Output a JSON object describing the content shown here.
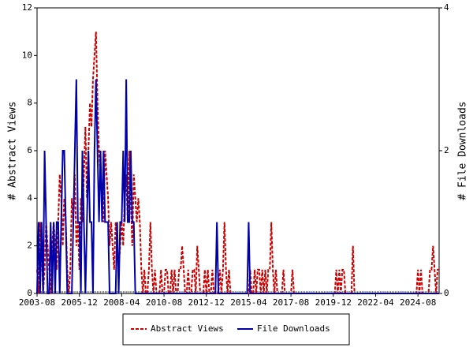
{
  "chart_data": {
    "type": "line",
    "y_label": "# Abstract Views",
    "y2_label": "# File Downloads",
    "ylim": [
      0,
      12
    ],
    "yticks": [
      0,
      2,
      4,
      6,
      8,
      10,
      12
    ],
    "y2lim": [
      0,
      4
    ],
    "y2ticks": [
      0,
      2,
      4
    ],
    "legend": "bottom",
    "categories": [
      "2003-08",
      null,
      null,
      null,
      null,
      null,
      null,
      null,
      null,
      null,
      null,
      null,
      null,
      null,
      null,
      null,
      null,
      null,
      null,
      null,
      null,
      null,
      null,
      null,
      null,
      null,
      null,
      null,
      "2005-12",
      null,
      null,
      null,
      null,
      null,
      null,
      null,
      null,
      null,
      null,
      null,
      null,
      null,
      null,
      null,
      null,
      null,
      null,
      null,
      null,
      null,
      null,
      null,
      null,
      null,
      null,
      null,
      "2008-04",
      null,
      null,
      null,
      null,
      null,
      null,
      null,
      null,
      null,
      null,
      null,
      null,
      null,
      null,
      null,
      null,
      null,
      null,
      null,
      null,
      null,
      null,
      null,
      null,
      null,
      null,
      null,
      "2010-08",
      null,
      null,
      null,
      null,
      null,
      null,
      null,
      null,
      null,
      null,
      null,
      null,
      null,
      null,
      null,
      null,
      null,
      null,
      null,
      null,
      null,
      null,
      null,
      null,
      null,
      null,
      null,
      "2012-12",
      null,
      null,
      null,
      null,
      null,
      null,
      null,
      null,
      null,
      null,
      null,
      null,
      null,
      null,
      null,
      null,
      null,
      null,
      null,
      null,
      null,
      null,
      null,
      null,
      null,
      null,
      null,
      "2015-04",
      null,
      null,
      null,
      null,
      null,
      null,
      null,
      null,
      null,
      null,
      null,
      null,
      null,
      null,
      null,
      null,
      null,
      null,
      null,
      null,
      null,
      null,
      null,
      null,
      null,
      null,
      null,
      "2017-08",
      null,
      null,
      null,
      null,
      null,
      null,
      null,
      null,
      null,
      null,
      null,
      null,
      null,
      null,
      null,
      null,
      null,
      null,
      null,
      null,
      null,
      null,
      null,
      null,
      null,
      null,
      null,
      "2019-12",
      null,
      null,
      null,
      null,
      null,
      null,
      null,
      null,
      null,
      null,
      null,
      null,
      null,
      null,
      null,
      null,
      null,
      null,
      null,
      null,
      null,
      null,
      null,
      null,
      null,
      null,
      null,
      "2022-04",
      null,
      null,
      null,
      null,
      null,
      null,
      null,
      null,
      null,
      null,
      null,
      null,
      null,
      null,
      null,
      null,
      null,
      null,
      null,
      null,
      null,
      null,
      null,
      null,
      null,
      null,
      null,
      "2024-08",
      null,
      null,
      null,
      null,
      null,
      null,
      null,
      null,
      null,
      null,
      null,
      null,
      null,
      null
    ],
    "series": [
      {
        "name": "Abstract Views",
        "color": "#cc0000",
        "dash": true,
        "values": [
          1,
          0,
          3,
          2,
          0,
          1,
          3,
          2,
          1,
          0,
          2,
          3,
          2,
          1,
          3,
          5,
          4,
          2,
          4,
          3,
          1,
          0,
          1,
          4,
          3,
          5,
          2,
          3,
          1,
          4,
          3,
          5,
          7,
          4,
          6,
          8,
          7,
          9,
          10,
          11,
          8,
          6,
          5,
          4,
          3,
          6,
          5,
          4,
          2,
          3,
          2,
          1,
          3,
          2,
          1,
          2,
          3,
          2,
          4,
          5,
          3,
          6,
          4,
          2,
          5,
          4,
          3,
          4,
          3,
          1,
          0,
          1,
          0,
          0,
          1,
          3,
          1,
          0,
          1,
          0,
          0,
          0,
          1,
          0,
          0,
          1,
          1,
          0,
          0,
          1,
          0,
          1,
          0,
          0,
          1,
          1,
          2,
          1,
          0,
          0,
          1,
          0,
          0,
          1,
          1,
          0,
          2,
          1,
          0,
          0,
          0,
          1,
          0,
          1,
          0,
          0,
          1,
          0,
          0,
          0,
          0,
          1,
          0,
          1,
          3,
          1,
          0,
          1,
          0,
          0,
          0,
          0,
          0,
          0,
          0,
          0,
          0,
          0,
          0,
          0,
          0,
          1,
          0,
          0,
          1,
          0,
          1,
          1,
          0,
          1,
          0,
          1,
          0,
          1,
          1,
          3,
          1,
          0,
          1,
          0,
          0,
          0,
          0,
          1,
          0,
          0,
          0,
          0,
          0,
          1,
          0,
          0,
          0,
          0,
          0,
          0,
          0,
          0,
          0,
          0,
          0,
          0,
          0,
          0,
          0,
          0,
          0,
          0,
          0,
          0,
          0,
          0,
          0,
          0,
          0,
          0,
          0,
          0,
          1,
          0,
          1,
          0,
          1,
          1,
          0,
          0,
          0,
          0,
          0,
          2,
          0,
          0,
          0,
          0,
          0,
          0,
          0,
          0,
          0,
          0,
          0,
          0,
          0,
          0,
          0,
          0,
          0,
          0,
          0,
          0,
          0,
          0,
          0,
          0,
          0,
          0,
          0,
          0,
          0,
          0,
          0,
          0,
          0,
          0,
          0,
          0,
          0,
          0,
          0,
          0,
          0,
          0,
          1,
          0,
          1,
          0,
          0,
          0,
          0,
          0,
          1,
          1,
          2,
          1,
          0,
          1,
          1
        ]
      },
      {
        "name": "File Downloads",
        "color": "#0000aa",
        "axis": "y2",
        "dash": false,
        "values": [
          0,
          1,
          0,
          1,
          0,
          2,
          1,
          0,
          0,
          1,
          0,
          1,
          0,
          1,
          1,
          0,
          1,
          2,
          2,
          1,
          0,
          0,
          0,
          0,
          1,
          2,
          3,
          1,
          1,
          0,
          2,
          1,
          0,
          1,
          2,
          1,
          1,
          0,
          2,
          3,
          2,
          1,
          2,
          1,
          2,
          1,
          1,
          1,
          0,
          0,
          0,
          0,
          0,
          1,
          0,
          1,
          1,
          2,
          1,
          3,
          1,
          1,
          2,
          1,
          1,
          0,
          0,
          0,
          0,
          0,
          0,
          0,
          0,
          0,
          0,
          0,
          0,
          0,
          0,
          0,
          0,
          0,
          0,
          0,
          0,
          0,
          0,
          0,
          0,
          0,
          0,
          0,
          0,
          0,
          0,
          0,
          0,
          0,
          0,
          0,
          0,
          0,
          0,
          0,
          0,
          0,
          0,
          0,
          0,
          0,
          0,
          0,
          0,
          0,
          0,
          0,
          0,
          0,
          0,
          1,
          0,
          0,
          0,
          0,
          0,
          0,
          0,
          0,
          0,
          0,
          0,
          0,
          0,
          0,
          0,
          0,
          0,
          0,
          0,
          0,
          1,
          0,
          0,
          0,
          0,
          0,
          0,
          0,
          0,
          0,
          0,
          0,
          0,
          0,
          0,
          0,
          0,
          0,
          0,
          0,
          0,
          0,
          0,
          0,
          0,
          0,
          0,
          0,
          0,
          0,
          0,
          0,
          0,
          0,
          0,
          0,
          0,
          0,
          0,
          0,
          0,
          0,
          0,
          0,
          0,
          0,
          0,
          0,
          0,
          0,
          0,
          0,
          0,
          0,
          0,
          0,
          0,
          0,
          0,
          0,
          0,
          0,
          0,
          0,
          0,
          0,
          0,
          0,
          0,
          0,
          0,
          0,
          0,
          0,
          0,
          0,
          0,
          0,
          0,
          0,
          0,
          0,
          0,
          0,
          0,
          0,
          0,
          0,
          0,
          0,
          0,
          0,
          0,
          0,
          0,
          0,
          0,
          0,
          0,
          0,
          0,
          0,
          0,
          0,
          0,
          0,
          0,
          0,
          0,
          0,
          0,
          0,
          0,
          0,
          0,
          0,
          0,
          0,
          0,
          0,
          0,
          0,
          0,
          0,
          0,
          0,
          0
        ]
      }
    ]
  }
}
